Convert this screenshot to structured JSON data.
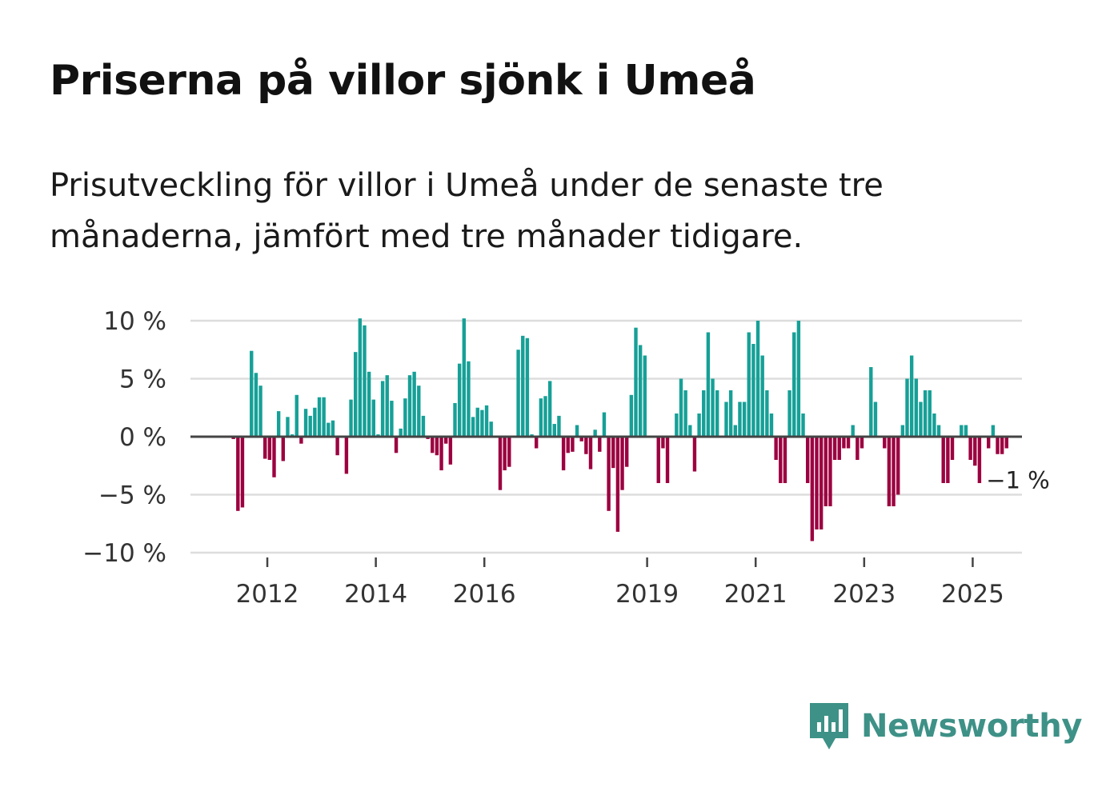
{
  "title": "Priserna på villor sjönk i Umeå",
  "subtitle": "Prisutveckling för villor i Umeå under de senaste tre månaderna, jämfört med tre månader tidigare.",
  "brand": {
    "name": "Newsworthy",
    "icon": "newsworthy-logo-icon",
    "color": "#3e9187"
  },
  "colors": {
    "positive": "#16a097",
    "negative": "#9c0040",
    "grid": "#dddddd",
    "zero_line": "#444444"
  },
  "chart_data": {
    "type": "bar",
    "title": "Priserna på villor sjönk i Umeå",
    "xlabel": "",
    "ylabel": "",
    "ylim": [
      -10,
      10
    ],
    "y_ticks": [
      10,
      5,
      0,
      -5,
      -10
    ],
    "y_tick_labels": [
      "10 %",
      "5 %",
      "0 %",
      "−5 %",
      "−10 %"
    ],
    "x_tick_years": [
      2012,
      2014,
      2016,
      2019,
      2021,
      2023,
      2025
    ],
    "x_tick_labels": [
      "2012",
      "2014",
      "2016",
      "2019",
      "2021",
      "2023",
      "2025"
    ],
    "x_start": "2011-09",
    "frequency": "monthly",
    "annotation": {
      "label": "−1 %",
      "value": -1,
      "month_index": 168
    },
    "values": [
      -0.1,
      -0.2,
      -6.4,
      -6.1,
      0,
      7.4,
      5.5,
      4.4,
      -1.9,
      -2.0,
      -3.5,
      2.2,
      -2.1,
      1.7,
      0.2,
      3.6,
      -0.6,
      2.4,
      1.8,
      2.5,
      3.4,
      3.4,
      1.2,
      1.4,
      -1.6,
      0,
      -3.2,
      3.2,
      7.3,
      10.2,
      9.6,
      5.6,
      3.2,
      0.2,
      4.8,
      5.3,
      3.1,
      -1.4,
      0.7,
      3.3,
      5.3,
      5.6,
      4.4,
      1.8,
      -0.2,
      -1.4,
      -1.6,
      -2.9,
      -0.6,
      -2.4,
      2.9,
      6.3,
      10.2,
      6.5,
      1.7,
      2.5,
      2.3,
      2.7,
      1.3,
      0,
      -4.6,
      -2.9,
      -2.6,
      0,
      7.5,
      8.7,
      8.5,
      0.2,
      -1.0,
      3.3,
      3.5,
      4.8,
      1.1,
      1.8,
      -2.9,
      -1.4,
      -1.3,
      1.0,
      -0.4,
      -1.5,
      -2.8,
      0.6,
      -1.3,
      2.1,
      -6.4,
      -2.7,
      -8.2,
      -4.6,
      -2.6,
      3.6,
      9.4,
      7.9,
      7.0,
      0,
      0,
      -4.0,
      -1.0,
      -4.0,
      0,
      2.0,
      5.0,
      4.0,
      1.0,
      -3.0,
      2.0,
      4.0,
      9.0,
      5.0,
      4.0,
      0,
      3.0,
      4.0,
      1.0,
      3.0,
      3.0,
      9.0,
      8.0,
      10.0,
      7.0,
      4.0,
      2.0,
      -2.0,
      -4.0,
      -4.0,
      4.0,
      9.0,
      10.0,
      2.0,
      -4.0,
      -9.0,
      -8.0,
      -8.0,
      -6.0,
      -6.0,
      -2.0,
      -2.0,
      -1.0,
      -1.0,
      1.0,
      -2.0,
      -1.0,
      0,
      6.0,
      3.0,
      0,
      -1.0,
      -6.0,
      -6.0,
      -5.0,
      1.0,
      5.0,
      7.0,
      5.0,
      3.0,
      4.0,
      4.0,
      2.0,
      1.0,
      -4.0,
      -4.0,
      -2.0,
      0,
      1.0,
      1.0,
      -2.0,
      -2.5,
      -4.0,
      0,
      -1.0,
      1.0,
      -1.5,
      -1.5,
      -1.0
    ]
  }
}
